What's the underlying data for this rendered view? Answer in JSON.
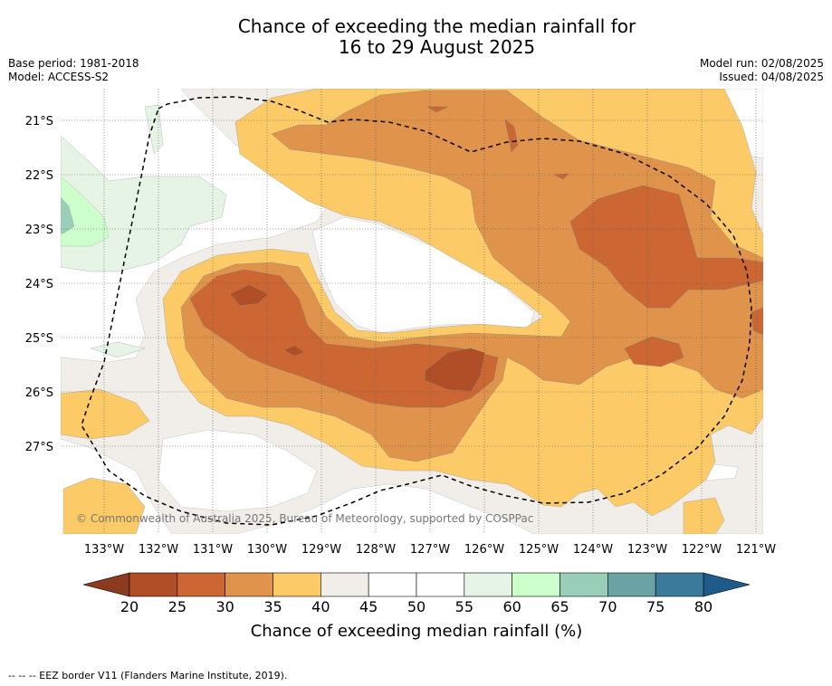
{
  "title_line1": "Chance of exceeding the median rainfall for",
  "title_line2": "16 to 29 August 2025",
  "meta_left": [
    "Base period: 1981-2018",
    "Model: ACCESS-S2"
  ],
  "meta_right": [
    "Model run: 02/08/2025",
    "Issued: 04/08/2025"
  ],
  "copyright": "© Commonwealth of Australia 2025, Bureau of Meteorology, supported by COSPPac",
  "lat_labels": [
    "21°S",
    "22°S",
    "23°S",
    "24°S",
    "25°S",
    "26°S",
    "27°S"
  ],
  "lon_labels": [
    "133°W",
    "132°W",
    "131°W",
    "130°W",
    "129°W",
    "128°W",
    "127°W",
    "126°W",
    "125°W",
    "124°W",
    "123°W",
    "122°W",
    "121°W"
  ],
  "colorbar": {
    "ticks": [
      "20",
      "25",
      "30",
      "35",
      "40",
      "45",
      "50",
      "55",
      "60",
      "65",
      "70",
      "75",
      "80"
    ],
    "colors": [
      "#b04e28",
      "#cc6733",
      "#e0934a",
      "#fccb68",
      "#f1ede8",
      "#ffffff",
      "#ffffff",
      "#e6f4e6",
      "#ccffcc",
      "#99cfb8",
      "#6aa3a3",
      "#3a7b9c"
    ],
    "low_extend_color": "#8c3b20",
    "high_extend_color": "#1f5a8c",
    "title": "Chance of exceeding median rainfall (%)"
  },
  "footnote": "--  --  -- EEZ border V11 (Flanders Marine Institute, 2019)."
}
